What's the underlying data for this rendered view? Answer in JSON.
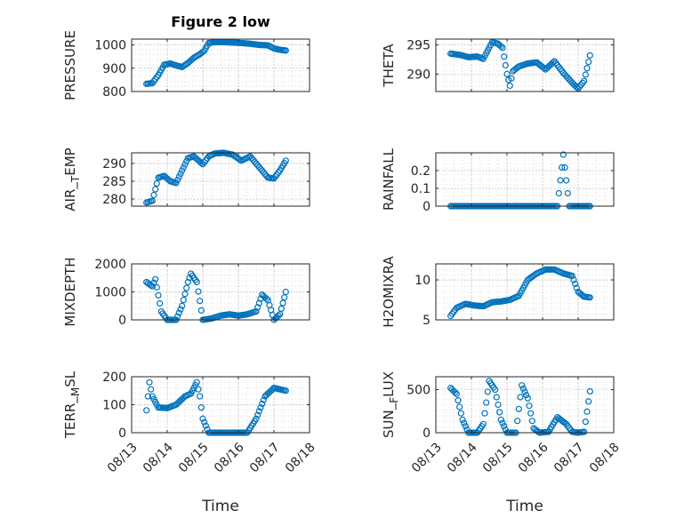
{
  "figure": {
    "title": "Figure 2 low",
    "xlabel": "Time",
    "x_ticks": [
      "08/13",
      "08/14",
      "08/15",
      "08/16",
      "08/17",
      "08/18"
    ]
  },
  "colors": {
    "marker": "#0072bd",
    "axis": "#262626",
    "grid": "#c8c8c8"
  },
  "chart_data": [
    {
      "type": "scatter",
      "ylabel": "PRESSURE",
      "ylim": [
        800,
        1025
      ],
      "yticks": [
        800,
        900,
        1000
      ],
      "grid": true,
      "x": [
        "2020-08-13 10:00",
        "2020-08-13 14:00",
        "2020-08-13 18:00",
        "2020-08-13 22:00",
        "2020-08-14 02:00",
        "2020-08-14 06:00",
        "2020-08-14 10:00",
        "2020-08-14 14:00",
        "2020-08-14 18:00",
        "2020-08-14 22:00",
        "2020-08-15 01:00",
        "2020-08-15 04:00",
        "2020-08-15 08:00",
        "2020-08-15 14:00",
        "2020-08-15 20:00",
        "2020-08-16 02:00",
        "2020-08-16 08:00",
        "2020-08-16 14:00",
        "2020-08-16 20:00",
        "2020-08-17 00:00",
        "2020-08-17 04:00",
        "2020-08-17 08:00"
      ],
      "y": [
        833,
        836,
        870,
        915,
        920,
        912,
        905,
        922,
        945,
        960,
        975,
        1008,
        1012,
        1012,
        1010,
        1008,
        1005,
        1000,
        998,
        985,
        979,
        976
      ]
    },
    {
      "type": "scatter",
      "ylabel": "THETA",
      "ylim": [
        287,
        296
      ],
      "yticks": [
        290,
        295
      ],
      "grid": true,
      "x": [
        "2020-08-13 10:00",
        "2020-08-13 16:00",
        "2020-08-13 22:00",
        "2020-08-14 04:00",
        "2020-08-14 08:00",
        "2020-08-14 14:00",
        "2020-08-14 18:00",
        "2020-08-14 21:00",
        "2020-08-15 00:00",
        "2020-08-15 02:00",
        "2020-08-15 04:00",
        "2020-08-15 08:00",
        "2020-08-15 14:00",
        "2020-08-15 20:00",
        "2020-08-16 02:00",
        "2020-08-16 08:00",
        "2020-08-16 14:00",
        "2020-08-16 20:00",
        "2020-08-17 00:00",
        "2020-08-17 04:00",
        "2020-08-17 08:00"
      ],
      "y": [
        293.5,
        293.3,
        292.9,
        293.0,
        292.6,
        295.5,
        295.2,
        294.5,
        290.0,
        288.0,
        290.5,
        291.3,
        291.8,
        292.0,
        290.8,
        292.2,
        290.2,
        288.5,
        287.5,
        288.8,
        293.2
      ]
    },
    {
      "type": "scatter",
      "ylabel": "AIR_TEMP",
      "ylim": [
        278,
        293
      ],
      "yticks": [
        280,
        285,
        290
      ],
      "grid": true,
      "x": [
        "2020-08-13 10:00",
        "2020-08-13 14:00",
        "2020-08-13 18:00",
        "2020-08-13 22:00",
        "2020-08-14 02:00",
        "2020-08-14 06:00",
        "2020-08-14 10:00",
        "2020-08-14 14:00",
        "2020-08-14 18:00",
        "2020-08-14 22:00",
        "2020-08-15 00:00",
        "2020-08-15 04:00",
        "2020-08-15 08:00",
        "2020-08-15 14:00",
        "2020-08-15 20:00",
        "2020-08-16 02:00",
        "2020-08-16 08:00",
        "2020-08-16 14:00",
        "2020-08-16 20:00",
        "2020-08-17 00:00",
        "2020-08-17 04:00",
        "2020-08-17 08:00"
      ],
      "y": [
        279,
        279.5,
        286,
        286.5,
        285,
        284.5,
        288,
        291.5,
        292,
        290.5,
        289.8,
        292,
        292.8,
        293,
        292.5,
        290.8,
        292,
        289,
        286,
        285.8,
        288,
        290.8
      ]
    },
    {
      "type": "scatter",
      "ylabel": "RAINFALL",
      "ylim": [
        0,
        0.3
      ],
      "yticks": [
        0,
        0.1,
        0.2
      ],
      "grid": true,
      "x": [
        "2020-08-13 10:00",
        "2020-08-13 18:00",
        "2020-08-14 02:00",
        "2020-08-14 10:00",
        "2020-08-14 18:00",
        "2020-08-15 02:00",
        "2020-08-15 10:00",
        "2020-08-15 18:00",
        "2020-08-16 02:00",
        "2020-08-16 10:00",
        "2020-08-16 14:00",
        "2020-08-16 18:00",
        "2020-08-17 02:00",
        "2020-08-17 08:00"
      ],
      "y": [
        0,
        0,
        0,
        0,
        0,
        0,
        0,
        0,
        0,
        0,
        0.29,
        0,
        0,
        0
      ]
    },
    {
      "type": "scatter",
      "ylabel": "MIXDEPTH",
      "ylim": [
        0,
        2000
      ],
      "yticks": [
        0,
        1000,
        2000
      ],
      "grid": true,
      "x": [
        "2020-08-13 10:00",
        "2020-08-13 14:00",
        "2020-08-13 16:00",
        "2020-08-13 20:00",
        "2020-08-14 00:00",
        "2020-08-14 06:00",
        "2020-08-14 10:00",
        "2020-08-14 14:00",
        "2020-08-14 16:00",
        "2020-08-14 20:00",
        "2020-08-15 00:00",
        "2020-08-15 06:00",
        "2020-08-15 12:00",
        "2020-08-15 18:00",
        "2020-08-16 00:00",
        "2020-08-16 06:00",
        "2020-08-16 12:00",
        "2020-08-16 16:00",
        "2020-08-16 20:00",
        "2020-08-17 00:00",
        "2020-08-17 04:00",
        "2020-08-17 08:00"
      ],
      "y": [
        1350,
        1200,
        1450,
        300,
        0,
        0,
        500,
        1350,
        1650,
        1350,
        0,
        50,
        150,
        200,
        150,
        200,
        300,
        900,
        700,
        0,
        200,
        1000
      ]
    },
    {
      "type": "scatter",
      "ylabel": "H2OMIXRA",
      "ylim": [
        5,
        12
      ],
      "yticks": [
        5,
        10
      ],
      "grid": true,
      "x": [
        "2020-08-13 10:00",
        "2020-08-13 14:00",
        "2020-08-13 20:00",
        "2020-08-14 02:00",
        "2020-08-14 08:00",
        "2020-08-14 14:00",
        "2020-08-14 20:00",
        "2020-08-15 02:00",
        "2020-08-15 08:00",
        "2020-08-15 14:00",
        "2020-08-15 20:00",
        "2020-08-16 02:00",
        "2020-08-16 08:00",
        "2020-08-16 14:00",
        "2020-08-16 20:00",
        "2020-08-17 00:00",
        "2020-08-17 04:00",
        "2020-08-17 08:00"
      ],
      "y": [
        5.5,
        6.5,
        7,
        6.8,
        6.7,
        7.2,
        7.3,
        7.5,
        8.0,
        10.0,
        10.8,
        11.3,
        11.3,
        10.8,
        10.5,
        8.5,
        7.9,
        7.8
      ]
    },
    {
      "type": "scatter",
      "ylabel": "TERR_MSL",
      "ylim": [
        0,
        200
      ],
      "yticks": [
        0,
        100,
        200
      ],
      "grid": true,
      "x": [
        "2020-08-13 10:00",
        "2020-08-13 12:00",
        "2020-08-13 14:00",
        "2020-08-13 18:00",
        "2020-08-14 00:00",
        "2020-08-14 06:00",
        "2020-08-14 12:00",
        "2020-08-14 16:00",
        "2020-08-14 20:00",
        "2020-08-14 22:00",
        "2020-08-15 00:00",
        "2020-08-15 04:00",
        "2020-08-15 10:00",
        "2020-08-15 18:00",
        "2020-08-16 00:00",
        "2020-08-16 06:00",
        "2020-08-16 12:00",
        "2020-08-16 18:00",
        "2020-08-17 00:00",
        "2020-08-17 04:00",
        "2020-08-17 08:00"
      ],
      "y": [
        80,
        180,
        130,
        90,
        88,
        100,
        130,
        140,
        180,
        130,
        50,
        0,
        0,
        0,
        0,
        0,
        50,
        130,
        160,
        155,
        150
      ]
    },
    {
      "type": "scatter",
      "ylabel": "SUN_FLUX",
      "ylim": [
        0,
        650
      ],
      "yticks": [
        0,
        500
      ],
      "grid": true,
      "x": [
        "2020-08-13 10:00",
        "2020-08-13 14:00",
        "2020-08-13 18:00",
        "2020-08-13 22:00",
        "2020-08-14 04:00",
        "2020-08-14 08:00",
        "2020-08-14 12:00",
        "2020-08-14 16:00",
        "2020-08-14 20:00",
        "2020-08-15 00:00",
        "2020-08-15 06:00",
        "2020-08-15 10:00",
        "2020-08-15 14:00",
        "2020-08-15 18:00",
        "2020-08-15 22:00",
        "2020-08-16 04:00",
        "2020-08-16 10:00",
        "2020-08-16 16:00",
        "2020-08-16 20:00",
        "2020-08-17 00:00",
        "2020-08-17 04:00",
        "2020-08-17 08:00"
      ],
      "y": [
        520,
        450,
        150,
        0,
        0,
        100,
        600,
        500,
        150,
        0,
        0,
        550,
        400,
        50,
        0,
        10,
        180,
        100,
        10,
        0,
        10,
        480
      ]
    }
  ]
}
